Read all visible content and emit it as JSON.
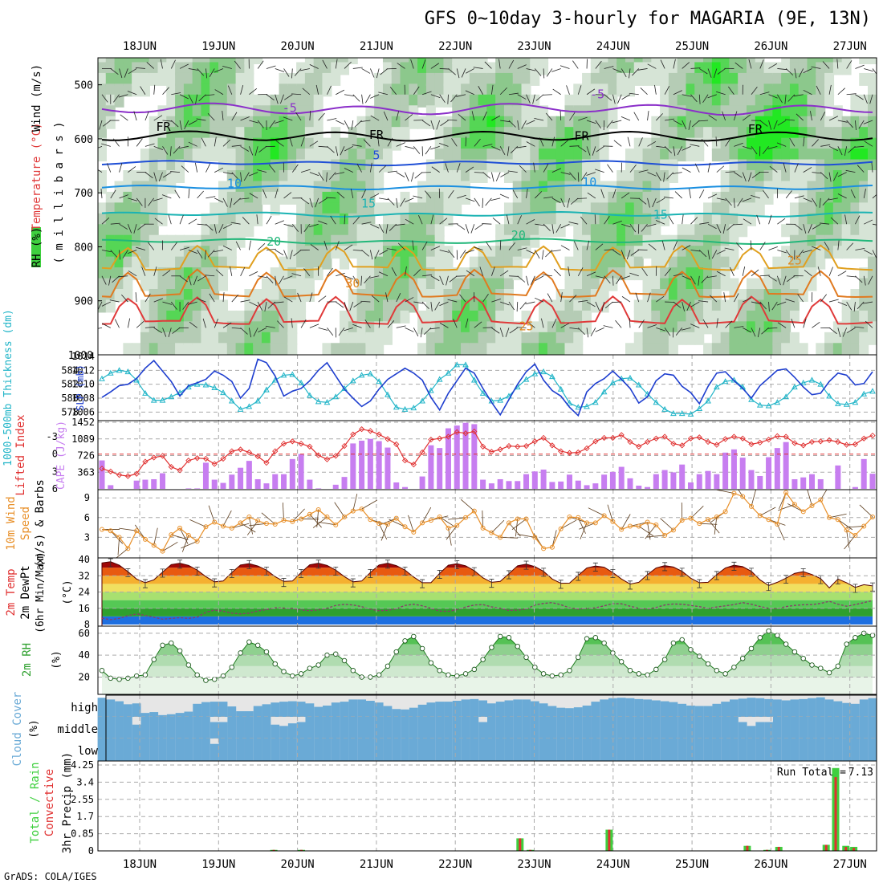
{
  "title": "GFS 0~10day 3-hourly for MAGARIA (9E, 13N)",
  "credit": "GrADS: COLA/IGES",
  "days": [
    "18JUN",
    "19JUN",
    "20JUN",
    "21JUN",
    "22JUN",
    "23JUN",
    "24JUN",
    "25JUN",
    "26JUN",
    "27JUN"
  ],
  "colors": {
    "rh_green": "#3ecf3e",
    "cape": "#c77ef0",
    "lifted": "#e03030",
    "slp": "#1f3fcf",
    "thk": "#22b5c8",
    "wind10": "#e8902a",
    "cloud": "#6aaad6",
    "precip_total": "#3ecf3e",
    "precip_conv": "#e03030"
  },
  "chart_data": [
    {
      "type": "heatmap",
      "name": "upper-air cross section",
      "ylabel_parts": [
        "RH (%)",
        "Temperature (°C)",
        "Wind (m/s)"
      ],
      "ylabel_unit": "( m i l l i b a r s )",
      "yticks": [
        "500",
        "600",
        "700",
        "800",
        "900",
        "1000"
      ],
      "ylim": [
        1000,
        450
      ],
      "contour_labels": [
        {
          "text": "-5",
          "day": 1.9,
          "p": 550
        },
        {
          "text": "-5",
          "day": 5.8,
          "p": 525
        },
        {
          "text": "FR",
          "day": 0.3,
          "p": 585
        },
        {
          "text": "FR",
          "day": 3.0,
          "p": 600
        },
        {
          "text": "FR",
          "day": 5.6,
          "p": 602
        },
        {
          "text": "FR",
          "day": 7.8,
          "p": 590
        },
        {
          "text": "5",
          "day": 3.0,
          "p": 638
        },
        {
          "text": "10",
          "day": 1.2,
          "p": 690
        },
        {
          "text": "10",
          "day": 5.7,
          "p": 688
        },
        {
          "text": "15",
          "day": 2.9,
          "p": 727
        },
        {
          "text": "15",
          "day": 6.6,
          "p": 748
        },
        {
          "text": "20",
          "day": 1.7,
          "p": 798
        },
        {
          "text": "20",
          "day": 4.8,
          "p": 786
        },
        {
          "text": "25",
          "day": 8.3,
          "p": 833
        },
        {
          "text": "30",
          "day": 2.7,
          "p": 875
        },
        {
          "text": "25",
          "day": 4.9,
          "p": 955
        }
      ],
      "isotherms": [
        {
          "t": -5,
          "color": "#8b2fc9",
          "base": 545,
          "amp": 15
        },
        {
          "t": "FR",
          "color": "#000000",
          "base": 595,
          "amp": 5
        },
        {
          "t": 5,
          "color": "#1f4fd6",
          "base": 645,
          "amp": 7
        },
        {
          "t": 10,
          "color": "#1a8fe0",
          "base": 690,
          "amp": 5
        },
        {
          "t": 15,
          "color": "#1bb3b3",
          "base": 740,
          "amp": 8
        },
        {
          "t": 20,
          "color": "#22b77a",
          "base": 790,
          "amp": 10
        },
        {
          "t": 25,
          "color": "#e0a020",
          "base": 840,
          "amp": 40
        },
        {
          "t": 30,
          "color": "#e07a20",
          "base": 890,
          "amp": 45
        },
        {
          "t": 35,
          "color": "#e03a3a",
          "base": 940,
          "amp": 45
        }
      ]
    },
    {
      "type": "line",
      "name": "1000-500mb thickness and SLP",
      "ylabel_left": "1000-500mb Thickness (dm)",
      "ylabel_right": "SLP (mb)",
      "ylim_thk": [
        577,
        586
      ],
      "ylim_slp": [
        1005,
        1014
      ],
      "yticks_thk": [
        "584",
        "582",
        "580",
        "578"
      ],
      "yticks_slp": [
        "1014",
        "1012",
        "1010",
        "1008",
        "1006"
      ],
      "thickness": [
        582.8,
        583.6,
        584.0,
        583.8,
        582.6,
        580.7,
        579.7,
        579.7,
        580.2,
        580.8,
        581.6,
        582.0,
        581.9,
        581.5,
        580.8,
        579.6,
        578.4,
        578.8,
        579.6,
        581.2,
        582.6,
        583.3,
        583.4,
        582.2,
        580.4,
        579.5,
        579.4,
        580.2,
        581.4,
        582.5,
        583.3,
        583.5,
        582.4,
        580.5,
        578.7,
        578.4,
        578.6,
        579.6,
        581.1,
        582.7,
        583.6,
        584.8,
        584.8,
        582.6,
        580.7,
        579.6,
        579.7,
        580.3,
        581.6,
        582.7,
        583.5,
        583.8,
        583.1,
        581.3,
        579.3,
        578.7,
        578.8,
        579.4,
        580.9,
        582.2,
        582.8,
        582.9,
        581.9,
        580.6,
        579.4,
        578.4,
        577.8,
        577.8,
        577.7,
        578.5,
        579.6,
        581.6,
        582.4,
        582.6,
        581.6,
        579.8,
        579.0,
        578.9,
        579.4,
        580.2,
        581.6,
        582.2,
        582.6,
        582.0,
        580.3,
        579.2,
        579.1,
        579.4,
        580.6,
        581.0
      ],
      "slp": [
        1008.1,
        1008.9,
        1009.8,
        1010.0,
        1010.8,
        1012.3,
        1013.4,
        1011.9,
        1010.4,
        1008.3,
        1009.8,
        1010.2,
        1010.7,
        1011.9,
        1011.3,
        1010.4,
        1008.0,
        1009.4,
        1013.6,
        1013.1,
        1011.2,
        1008.3,
        1009.0,
        1009.4,
        1010.5,
        1012.0,
        1013.1,
        1011.2,
        1009.3,
        1008.0,
        1006.8,
        1007.6,
        1009.3,
        1010.7,
        1011.5,
        1012.3,
        1011.6,
        1010.6,
        1008.1,
        1006.3,
        1008.7,
        1010.5,
        1012.3,
        1011.6,
        1009.4,
        1007.4,
        1005.6,
        1007.8,
        1010.0,
        1011.8,
        1012.9,
        1010.6,
        1009.1,
        1008.3,
        1006.7,
        1005.5,
        1008.9,
        1010.1,
        1010.8,
        1011.9,
        1010.7,
        1009.4,
        1007.3,
        1008.2,
        1010.5,
        1011.5,
        1011.3,
        1009.7,
        1008.8,
        1007.2,
        1009.7,
        1011.6,
        1011.8,
        1010.5,
        1009.4,
        1008.0,
        1009.8,
        1010.9,
        1012.0,
        1012.2,
        1011.0,
        1009.6,
        1008.5,
        1008.7,
        1010.4,
        1011.6,
        1011.3,
        1009.9,
        1010.1,
        1011.8
      ]
    },
    {
      "type": "bar",
      "name": "CAPE and Lifted Index",
      "ylabel_left": "Lifted Index",
      "ylabel_right": "CAPE (J/kg)",
      "yticks_li": [
        "-3",
        "0",
        "3",
        "6"
      ],
      "yticks_cape": [
        "1452",
        "1089",
        "726",
        "363"
      ],
      "cape_ylim": [
        0,
        1452
      ],
      "cape": [
        620,
        80,
        0,
        0,
        180,
        200,
        210,
        340,
        0,
        0,
        10,
        10,
        570,
        200,
        130,
        310,
        460,
        610,
        210,
        120,
        320,
        320,
        650,
        760,
        200,
        10,
        0,
        90,
        260,
        990,
        1050,
        1090,
        1040,
        900,
        140,
        40,
        0,
        270,
        950,
        890,
        1320,
        1380,
        1440,
        1410,
        200,
        120,
        210,
        170,
        170,
        320,
        380,
        420,
        150,
        160,
        310,
        180,
        80,
        120,
        310,
        370,
        480,
        230,
        70,
        40,
        320,
        410,
        360,
        530,
        140,
        320,
        390,
        320,
        790,
        860,
        680,
        410,
        280,
        690,
        890,
        1020,
        210,
        250,
        320,
        210,
        0,
        510,
        0,
        40,
        650,
        330
      ],
      "lifted_index": [
        2.5,
        3.0,
        3.6,
        3.8,
        3.4,
        1.3,
        0.6,
        0.3,
        2.2,
        2.8,
        1.1,
        0.7,
        0.8,
        1.7,
        0.8,
        -0.5,
        -0.8,
        -0.3,
        0.4,
        1.5,
        -0.5,
        -1.8,
        -2.2,
        -1.8,
        -1.3,
        0.2,
        0.9,
        0.3,
        -1.4,
        -3.4,
        -4.3,
        -4.0,
        -3.4,
        -2.6,
        -1.7,
        1.1,
        1.8,
        -0.3,
        -2.5,
        -2.7,
        -3.0,
        -3.8,
        -3.6,
        -3.9,
        -1.3,
        -0.4,
        -0.8,
        -1.4,
        -1.3,
        -1.4,
        -2.2,
        -2.8,
        -1.5,
        -0.5,
        -0.2,
        -0.3,
        -1.0,
        -2.2,
        -2.8,
        -2.8,
        -3.3,
        -2.1,
        -1.3,
        -2.1,
        -2.7,
        -3.0,
        -1.8,
        -1.5,
        -2.7,
        -2.9,
        -2.1,
        -1.6,
        -2.6,
        -3.0,
        -2.7,
        -1.7,
        -2.0,
        -2.5,
        -3.1,
        -3.0,
        -1.9,
        -1.5,
        -2.1,
        -2.2,
        -2.4,
        -2.1,
        -1.6,
        -1.7,
        -2.7,
        -3.2
      ]
    },
    {
      "type": "line",
      "name": "10m wind speed and barbs",
      "ylabel": "10m Wind Speed (m/s) & Barbs",
      "ylim": [
        0,
        10
      ],
      "yticks": [
        "9",
        "6",
        "3"
      ],
      "wind_speed": [
        4.2,
        4.0,
        3.0,
        1.3,
        4.0,
        2.7,
        1.8,
        0.9,
        3.4,
        4.4,
        3.3,
        2.4,
        4.6,
        5.3,
        4.7,
        4.4,
        5.2,
        6.1,
        5.5,
        5.1,
        5.0,
        5.6,
        5.4,
        5.8,
        6.5,
        7.2,
        6.1,
        4.9,
        6.1,
        7.0,
        7.3,
        5.7,
        5.1,
        5.0,
        5.9,
        4.6,
        3.8,
        5.2,
        5.6,
        6.1,
        4.4,
        4.8,
        6.0,
        7.0,
        4.4,
        3.7,
        3.0,
        5.2,
        5.8,
        5.8,
        3.0,
        1.3,
        1.5,
        4.3,
        6.1,
        6.0,
        5.2,
        5.2,
        6.3,
        5.4,
        4.2,
        4.7,
        4.7,
        5.3,
        4.9,
        3.3,
        4.1,
        5.6,
        5.9,
        5.1,
        5.7,
        6.1,
        6.9,
        9.7,
        9.2,
        7.7,
        6.3,
        5.7,
        5.0,
        9.8,
        8.0,
        6.9,
        7.8,
        8.7,
        6.0,
        5.7,
        4.1,
        3.3,
        4.7,
        6.1
      ]
    },
    {
      "type": "area",
      "name": "2m temperature and dewpoint",
      "ylabel": "2m Temp / 2m DewPt (6hr Min/Max) (°C)",
      "ylim": [
        8,
        40
      ],
      "yticks": [
        "40",
        "32",
        "24",
        "16",
        "8"
      ],
      "temp": [
        38.3,
        38.9,
        37.2,
        34.0,
        30.4,
        28.6,
        30.0,
        33.8,
        37.5,
        38.2,
        37.1,
        34.8,
        31.6,
        29.0,
        29.4,
        33.6,
        37.3,
        38.0,
        36.8,
        34.8,
        31.6,
        29.2,
        29.4,
        33.6,
        37.4,
        38.2,
        37.1,
        34.8,
        31.6,
        29.0,
        29.4,
        33.6,
        37.3,
        38.2,
        37.0,
        34.8,
        31.4,
        28.6,
        28.6,
        33.2,
        37.2,
        37.9,
        36.9,
        34.5,
        31.0,
        28.8,
        29.2,
        33.0,
        36.9,
        37.7,
        36.5,
        34.2,
        30.4,
        28.3,
        28.4,
        32.2,
        35.8,
        36.8,
        36.2,
        33.6,
        30.4,
        27.9,
        28.8,
        32.6,
        35.8,
        37.0,
        36.3,
        34.2,
        30.8,
        28.6,
        28.8,
        32.6,
        35.8,
        37.2,
        36.5,
        34.2,
        30.0,
        27.2,
        28.8,
        30.8,
        33.2,
        34.0,
        32.6,
        30.6,
        26.0,
        30.4,
        28.6,
        26.3,
        27.6,
        27.0
      ],
      "dewpoint": [
        11.1,
        10.4,
        11.0,
        12.4,
        13.2,
        12.5,
        11.6,
        10.6,
        11.0,
        11.4,
        11.0,
        11.6,
        14.0,
        15.1,
        14.6,
        13.6,
        13.2,
        13.6,
        14.7,
        15.3,
        16.3,
        16.1,
        15.9,
        15.2,
        14.8,
        15.2,
        16.0,
        17.4,
        17.9,
        17.6,
        16.8,
        15.5,
        14.8,
        15.0,
        15.8,
        17.4,
        18.0,
        17.2,
        16.0,
        14.6,
        14.5,
        15.3,
        16.6,
        17.6,
        17.8,
        16.7,
        16.0,
        14.9,
        15.1,
        15.6,
        17.6,
        18.4,
        18.8,
        17.7,
        16.2,
        15.6,
        16.0,
        16.2,
        17.2,
        18.3,
        18.2,
        17.0,
        16.0,
        15.6,
        16.4,
        17.6,
        18.1,
        18.0,
        17.4,
        16.8,
        16.0,
        16.6,
        17.2,
        17.8,
        18.8,
        18.0,
        16.9,
        16.0,
        15.8,
        16.8,
        17.4,
        17.7,
        17.8,
        18.4,
        19.4,
        18.0,
        17.0,
        17.8,
        18.8,
        19.8
      ]
    },
    {
      "type": "area",
      "name": "2m relative humidity",
      "ylabel": "2m RH (%)",
      "ylim": [
        5,
        65
      ],
      "yticks": [
        "60",
        "40",
        "20"
      ],
      "rh": [
        26,
        19,
        18,
        19,
        21,
        22,
        36,
        49,
        51,
        44,
        31,
        22,
        17,
        18,
        21,
        29,
        42,
        52,
        49,
        43,
        32,
        25,
        21,
        23,
        28,
        31,
        40,
        41,
        35,
        26,
        20,
        20,
        22,
        30,
        43,
        53,
        57,
        46,
        33,
        26,
        22,
        21,
        23,
        27,
        36,
        47,
        57,
        56,
        48,
        38,
        29,
        23,
        21,
        22,
        26,
        38,
        55,
        56,
        51,
        42,
        34,
        26,
        23,
        22,
        27,
        36,
        51,
        54,
        45,
        39,
        32,
        26,
        23,
        29,
        37,
        46,
        56,
        62,
        58,
        50,
        43,
        37,
        31,
        28,
        24,
        30,
        50,
        56,
        60,
        58
      ]
    },
    {
      "type": "heatmap",
      "name": "cloud cover",
      "ylabel": "Cloud Cover (%)",
      "levels": [
        "high",
        "middle",
        "low"
      ],
      "high": [
        88,
        80,
        72,
        58,
        62,
        18,
        22,
        8,
        12,
        18,
        24,
        60,
        68,
        70,
        70,
        48,
        26,
        26,
        50,
        58,
        66,
        70,
        72,
        70,
        62,
        46,
        52,
        66,
        70,
        80,
        80,
        74,
        66,
        50,
        36,
        34,
        42,
        56,
        66,
        70,
        70,
        74,
        80,
        82,
        76,
        62,
        70,
        76,
        80,
        80,
        72,
        62,
        50,
        42,
        40,
        44,
        52,
        70,
        80,
        86,
        88,
        86,
        82,
        80,
        76,
        72,
        68,
        60,
        52,
        50,
        50,
        60,
        70,
        80,
        84,
        88,
        86,
        82,
        80,
        76,
        80,
        82,
        86,
        90,
        80,
        72,
        64,
        60,
        80,
        86
      ],
      "middle": [
        0,
        0,
        0,
        0,
        12,
        0,
        0,
        0,
        0,
        0,
        0,
        0,
        0,
        8,
        8,
        0,
        0,
        0,
        0,
        0,
        12,
        14,
        10,
        8,
        0,
        0,
        0,
        0,
        0,
        0,
        0,
        0,
        0,
        0,
        0,
        0,
        0,
        0,
        0,
        0,
        0,
        0,
        0,
        0,
        8,
        0,
        0,
        0,
        0,
        0,
        0,
        0,
        0,
        0,
        0,
        0,
        0,
        0,
        0,
        0,
        0,
        0,
        0,
        0,
        0,
        0,
        0,
        0,
        0,
        0,
        0,
        0,
        0,
        0,
        8,
        14,
        8,
        8,
        0,
        0,
        0,
        0,
        0,
        0,
        0,
        0,
        0,
        0,
        0,
        0
      ],
      "low": [
        0,
        0,
        0,
        0,
        0,
        0,
        0,
        0,
        0,
        0,
        0,
        0,
        0,
        8,
        0,
        0,
        0,
        0,
        0,
        0,
        0,
        0,
        0,
        0,
        0,
        0,
        0,
        0,
        0,
        0,
        0,
        0,
        0,
        0,
        0,
        0,
        0,
        0,
        0,
        0,
        0,
        0,
        0,
        0,
        0,
        0,
        0,
        0,
        0,
        0,
        0,
        0,
        0,
        0,
        0,
        0,
        0,
        0,
        0,
        0,
        0,
        0,
        0,
        0,
        0,
        0,
        0,
        0,
        0,
        0,
        0,
        0,
        0,
        0,
        0,
        0,
        0,
        0,
        0,
        0,
        0,
        0,
        0,
        0,
        0,
        0,
        0,
        0,
        0,
        0
      ]
    },
    {
      "type": "bar",
      "name": "3hr precipitation",
      "ylabel": "3hr Precip (mm)",
      "legend": "Total / Rain Convective",
      "run_total_label": "Run Total =",
      "run_total": "7.13",
      "ylim": [
        0,
        4.25
      ],
      "yticks": [
        "4.25",
        "3.4",
        "2.55",
        "1.7",
        "0.85",
        "0"
      ],
      "precip": [
        {
          "day": 1.7,
          "total": 0.05,
          "conv": 0.05
        },
        {
          "day": 2.05,
          "total": 0.05,
          "conv": 0.05
        },
        {
          "day": 4.82,
          "total": 0.62,
          "conv": 0.62
        },
        {
          "day": 4.95,
          "total": 0.05,
          "conv": 0.05
        },
        {
          "day": 5.95,
          "total": 1.05,
          "conv": 1.05
        },
        {
          "day": 7.7,
          "total": 0.25,
          "conv": 0.25
        },
        {
          "day": 7.95,
          "total": 0.05,
          "conv": 0.05
        },
        {
          "day": 8.1,
          "total": 0.2,
          "conv": 0.2
        },
        {
          "day": 8.7,
          "total": 0.3,
          "conv": 0.3
        },
        {
          "day": 8.82,
          "total": 4.1,
          "conv": 3.65
        },
        {
          "day": 8.95,
          "total": 0.25,
          "conv": 0.2
        },
        {
          "day": 9.05,
          "total": 0.2,
          "conv": 0.15
        }
      ]
    }
  ]
}
